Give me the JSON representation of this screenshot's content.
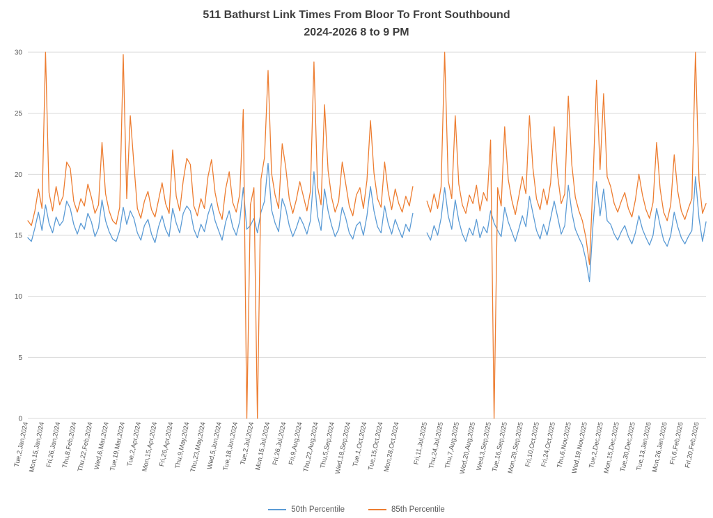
{
  "title": {
    "line1": "511 Bathurst Link Times From Bloor To Front Southbound",
    "line2": "2024-2026 8 to 9 PM"
  },
  "legend": [
    {
      "label": "50th Percentile",
      "color": "#5B9BD5"
    },
    {
      "label": "85th Percentile",
      "color": "#ED7D31"
    }
  ],
  "chart_data": {
    "type": "line",
    "title": "511 Bathurst Link Times From Bloor To Front Southbound",
    "subtitle": "2024-2026 8 to 9 PM",
    "xlabel": "",
    "ylabel": "",
    "ylim": [
      0,
      30
    ],
    "yticks": [
      0,
      5,
      10,
      15,
      20,
      25,
      30
    ],
    "grid": true,
    "legend_position": "bottom",
    "annotations": [
      "Visible data gap between late Oct 2024 and early Jul 2025",
      "Several 85th-percentile spikes are clipped at the 30 axis maximum",
      "85th percentile drops to 0 on three days (two in mid-Jun/early-Jul 2024, one near 3 Sep 2025)"
    ],
    "x_max_index": 192,
    "segments": {
      "seg1_start": 0,
      "seg2_start": 113
    },
    "x_tick_labels": {
      "seg1": [
        "Tue,2,Jan,2024",
        "Mon,15,Jan,2024",
        "Fri,26,Jan,2024",
        "Thu,8,Feb,2024",
        "Thu,22,Feb,2024",
        "Wed,6,Mar,2024",
        "Tue,19,Mar,2024",
        "Tue,2,Apr,2024",
        "Mon,15,Apr,2024",
        "Fri,26,Apr,2024",
        "Thu,9,May,2024",
        "Thu,23,May,2024",
        "Wed,5,Jun,2024",
        "Tue,18,Jun,2024",
        "Tue,2,Jul,2024",
        "Mon,15,Jul,2024",
        "Fri,26,Jul,2024",
        "Fri,9,Aug,2024",
        "Thu,22,Aug,2024",
        "Thu,5,Sep,2024",
        "Wed,18,Sep,2024",
        "Tue,1,Oct,2024",
        "Tue,15,Oct,2024",
        "Mon,28,Oct,2024"
      ],
      "seg2": [
        "Fri,11,Jul,2025",
        "Thu,24,Jul,2025",
        "Thu,7,Aug,2025",
        "Wed,20,Aug,2025",
        "Wed,3,Sep,2025",
        "Tue,16,Sep,2025",
        "Mon,29,Sep,2025",
        "Fri,10,Oct,2025",
        "Fri,24,Oct,2025",
        "Thu,6,Nov,2025",
        "Wed,19,Nov,2025",
        "Tue,2,Dec,2025",
        "Mon,15,Dec,2025",
        "Tue,30,Dec,2025",
        "Tue,13,Jan,2026",
        "Mon,26,Jan,2026",
        "Fri,6,Feb,2026",
        "Fri,20,Feb,2026"
      ]
    },
    "series": [
      {
        "name": "50th Percentile",
        "color": "#5B9BD5",
        "seg1": [
          14.8,
          14.5,
          15.6,
          16.9,
          15.4,
          17.5,
          16.0,
          15.2,
          16.5,
          15.8,
          16.2,
          17.8,
          17.2,
          15.9,
          15.1,
          16.0,
          15.5,
          16.8,
          16.1,
          14.9,
          15.6,
          17.9,
          16.2,
          15.3,
          14.7,
          14.5,
          15.4,
          17.3,
          15.9,
          17.0,
          16.4,
          15.2,
          14.6,
          15.8,
          16.3,
          15.1,
          14.4,
          15.7,
          16.6,
          15.5,
          14.9,
          17.2,
          16.0,
          15.2,
          16.8,
          17.4,
          17.0,
          15.5,
          14.8,
          15.9,
          15.3,
          16.7,
          17.6,
          16.2,
          15.4,
          14.6,
          16.1,
          17.0,
          15.7,
          15.0,
          16.2,
          18.9,
          15.5,
          15.8,
          16.4,
          15.2,
          16.9,
          17.8,
          20.9,
          17.1,
          16.0,
          15.3,
          18.0,
          17.2,
          15.8,
          14.9,
          15.6,
          16.5,
          15.9,
          15.1,
          16.2,
          20.2,
          16.6,
          15.4,
          18.8,
          17.0,
          15.8,
          14.9,
          15.5,
          17.3,
          16.4,
          15.2,
          14.7,
          15.8,
          16.1,
          15.0,
          16.6,
          19.0,
          17.0,
          15.7,
          15.2,
          17.4,
          16.0,
          15.1,
          16.3,
          15.5,
          14.8,
          15.9,
          15.3,
          16.8
        ],
        "seg2": [
          15.2,
          14.6,
          15.8,
          15.0,
          16.4,
          18.9,
          16.6,
          15.5,
          17.9,
          16.2,
          15.1,
          14.5,
          15.6,
          15.0,
          16.3,
          14.8,
          15.7,
          15.2,
          17.0,
          16.0,
          15.4,
          14.9,
          17.3,
          16.1,
          15.3,
          14.5,
          15.5,
          16.6,
          15.7,
          18.2,
          16.8,
          15.4,
          14.7,
          15.9,
          15.0,
          16.4,
          17.8,
          16.5,
          15.1,
          15.8,
          19.1,
          16.9,
          15.5,
          14.8,
          14.2,
          13.0,
          11.2,
          15.9,
          19.4,
          16.6,
          18.8,
          16.2,
          15.9,
          15.1,
          14.6,
          15.3,
          15.8,
          14.9,
          14.3,
          15.2,
          16.6,
          15.5,
          14.8,
          14.2,
          15.0,
          17.2,
          15.8,
          14.6,
          14.1,
          15.0,
          16.9,
          15.7,
          14.8,
          14.3,
          14.9,
          15.4,
          19.8,
          16.4,
          14.5,
          16.1
        ]
      },
      {
        "name": "85th Percentile",
        "color": "#ED7D31",
        "seg1": [
          16.2,
          15.8,
          17.0,
          18.8,
          17.2,
          30.0,
          18.5,
          17.0,
          19.0,
          17.5,
          18.2,
          21.0,
          20.5,
          17.8,
          16.9,
          18.0,
          17.4,
          19.2,
          18.1,
          16.8,
          17.5,
          22.6,
          18.4,
          17.0,
          16.2,
          15.9,
          17.3,
          29.8,
          18.0,
          24.8,
          20.9,
          17.2,
          16.4,
          17.8,
          18.6,
          17.1,
          16.5,
          17.9,
          19.3,
          17.6,
          16.8,
          22.0,
          18.2,
          17.0,
          19.5,
          21.3,
          20.8,
          17.4,
          16.6,
          18.0,
          17.2,
          19.8,
          21.2,
          18.5,
          17.1,
          16.3,
          18.8,
          20.2,
          17.7,
          16.9,
          18.4,
          25.3,
          0.0,
          17.5,
          18.9,
          0.0,
          19.6,
          21.4,
          28.5,
          20.1,
          18.3,
          17.2,
          22.5,
          20.6,
          18.0,
          16.8,
          17.9,
          19.4,
          18.2,
          17.0,
          18.6,
          29.2,
          19.0,
          17.5,
          25.7,
          20.3,
          18.1,
          16.9,
          17.8,
          21.0,
          19.2,
          17.4,
          16.6,
          18.3,
          18.9,
          17.2,
          19.5,
          24.4,
          20.1,
          18.0,
          17.3,
          21.0,
          18.6,
          17.1,
          18.8,
          17.6,
          16.9,
          18.2,
          17.4,
          19.0
        ],
        "seg2": [
          17.8,
          16.9,
          18.4,
          17.2,
          19.0,
          30.0,
          19.5,
          18.0,
          24.8,
          19.2,
          17.5,
          16.8,
          18.3,
          17.6,
          19.1,
          17.0,
          18.5,
          17.8,
          22.8,
          0.0,
          18.9,
          17.4,
          23.9,
          19.6,
          17.9,
          16.7,
          18.2,
          19.8,
          18.4,
          24.8,
          20.5,
          18.0,
          17.1,
          18.8,
          17.5,
          19.3,
          23.9,
          19.9,
          17.6,
          18.4,
          26.4,
          20.8,
          18.1,
          17.0,
          16.2,
          14.8,
          12.6,
          19.5,
          27.7,
          20.4,
          26.6,
          19.8,
          19.0,
          17.6,
          16.9,
          17.8,
          18.5,
          17.2,
          16.5,
          17.9,
          20.0,
          18.3,
          17.1,
          16.4,
          17.7,
          22.6,
          18.8,
          16.9,
          16.2,
          17.5,
          21.6,
          18.6,
          17.0,
          16.3,
          17.2,
          18.0,
          30.0,
          19.5,
          16.8,
          17.6
        ]
      }
    ]
  }
}
